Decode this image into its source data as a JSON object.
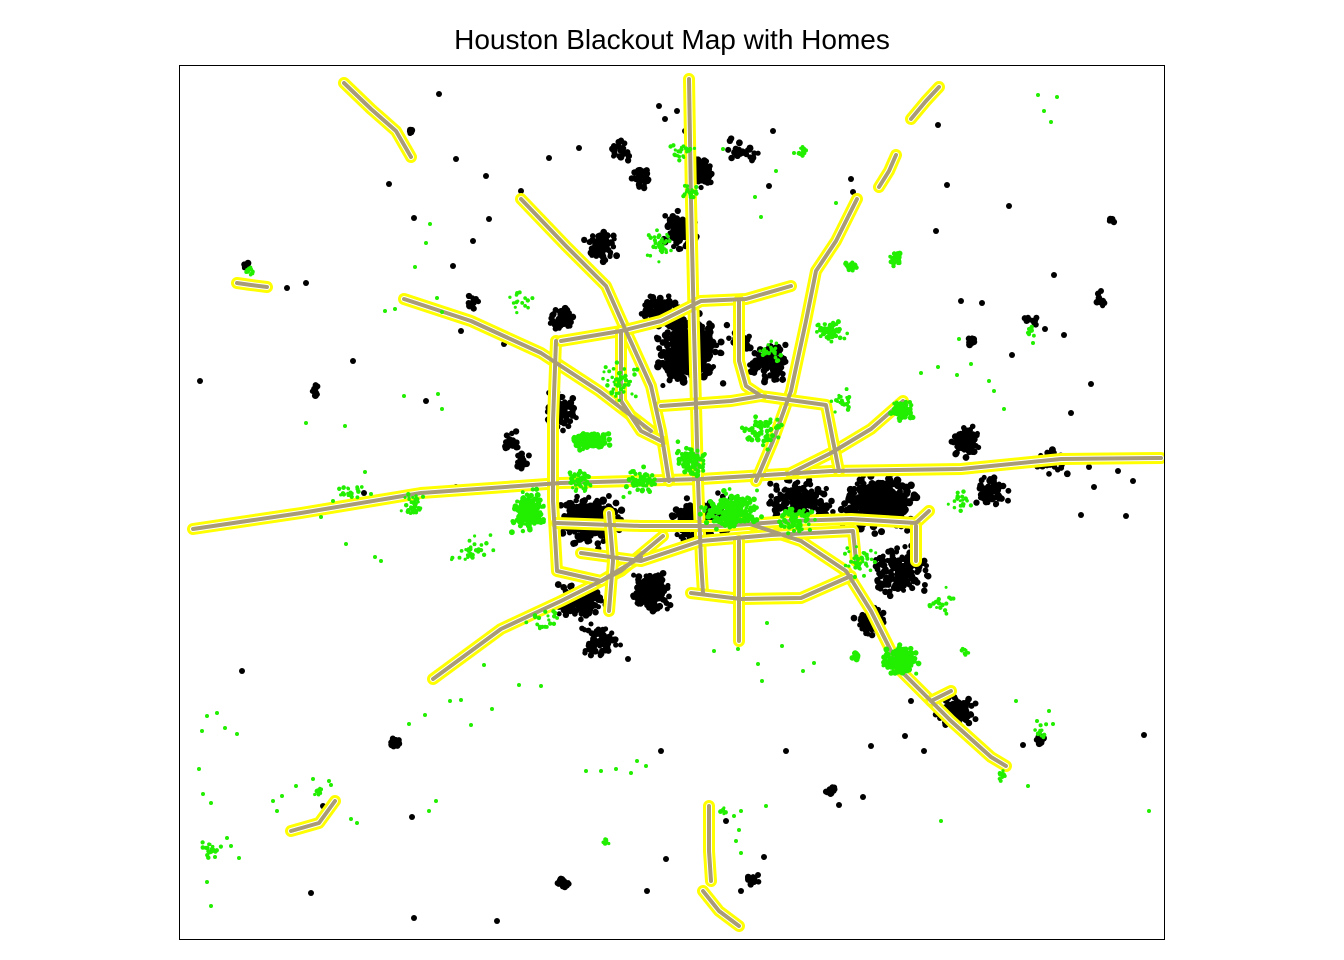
{
  "map": {
    "title": "Houston Blackout Map with Homes"
  },
  "layers": {
    "blackout_homes": {
      "color": "#000000"
    },
    "highway_buffer_outline": {
      "color": "#ffff00"
    },
    "highways": {
      "color": "#a89b7a"
    },
    "homes_with_power": {
      "color": "#22ee00"
    }
  }
}
